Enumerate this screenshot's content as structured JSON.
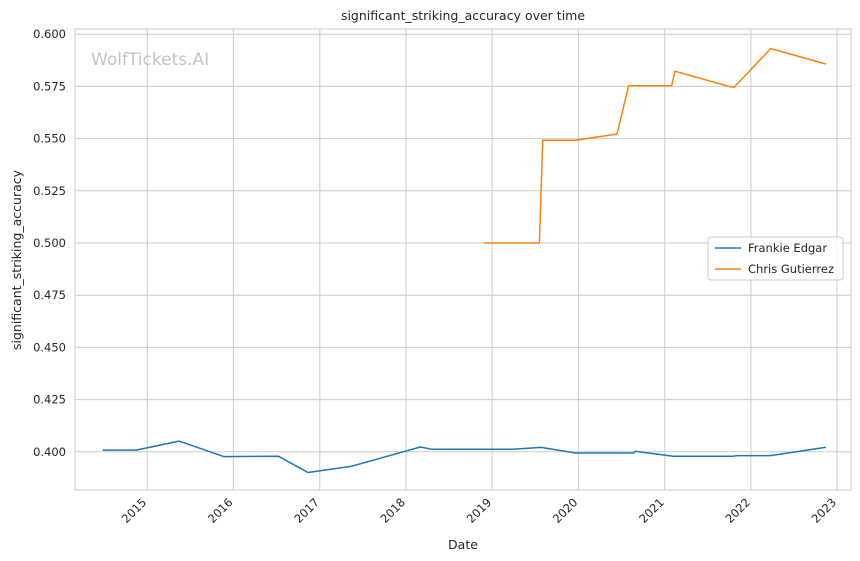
{
  "chart_data": {
    "type": "line",
    "title": "significant_striking_accuracy over time",
    "xlabel": "Date",
    "ylabel": "significant_striking_accuracy",
    "watermark": "WolfTickets.AI",
    "x_axis": "date",
    "xlim": [
      "2014-03-01",
      "2023-03-01"
    ],
    "ylim": [
      0.3817,
      0.6025
    ],
    "x_ticks": [
      "2015",
      "2016",
      "2017",
      "2018",
      "2019",
      "2020",
      "2021",
      "2022",
      "2023"
    ],
    "y_ticks": [
      "0.400",
      "0.425",
      "0.450",
      "0.475",
      "0.500",
      "0.525",
      "0.550",
      "0.575",
      "0.600"
    ],
    "grid": true,
    "legend_position": "center-right",
    "series": [
      {
        "name": "Frankie Edgar",
        "color": "#1f77b4",
        "points": [
          [
            "2014-06-28",
            0.4008
          ],
          [
            "2014-11-15",
            0.4008
          ],
          [
            "2015-05-16",
            0.4051
          ],
          [
            "2015-11-21",
            0.3977
          ],
          [
            "2016-07-09",
            0.3979
          ],
          [
            "2016-11-12",
            0.3901
          ],
          [
            "2017-05-13",
            0.393
          ],
          [
            "2018-03-03",
            0.4023
          ],
          [
            "2018-04-21",
            0.4012
          ],
          [
            "2019-03-30",
            0.4012
          ],
          [
            "2019-07-27",
            0.4021
          ],
          [
            "2019-12-21",
            0.3994
          ],
          [
            "2020-08-22",
            0.3994
          ],
          [
            "2020-08-29",
            0.4003
          ],
          [
            "2021-02-06",
            0.3979
          ],
          [
            "2021-10-16",
            0.3979
          ],
          [
            "2021-11-06",
            0.3982
          ],
          [
            "2022-03-26",
            0.3982
          ],
          [
            "2022-11-12",
            0.4021
          ]
        ]
      },
      {
        "name": "Chris Gutierrez",
        "color": "#ff7f0e",
        "points": [
          [
            "2018-12-01",
            0.5
          ],
          [
            "2019-07-20",
            0.5
          ],
          [
            "2019-08-03",
            0.5492
          ],
          [
            "2019-12-21",
            0.5492
          ],
          [
            "2020-06-13",
            0.5522
          ],
          [
            "2020-08-01",
            0.5753
          ],
          [
            "2021-01-30",
            0.5753
          ],
          [
            "2021-02-13",
            0.5823
          ],
          [
            "2021-10-09",
            0.5747
          ],
          [
            "2021-10-23",
            0.5747
          ],
          [
            "2022-03-26",
            0.5931
          ],
          [
            "2022-11-12",
            0.5858
          ]
        ]
      }
    ]
  }
}
